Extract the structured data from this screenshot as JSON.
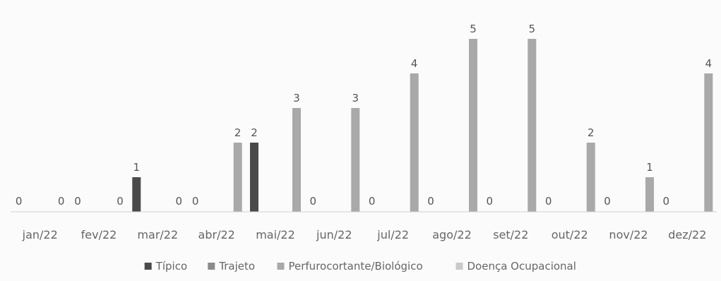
{
  "chart_data": {
    "type": "bar",
    "categories": [
      "jan/22",
      "fev/22",
      "mar/22",
      "abr/22",
      "mai/22",
      "jun/22",
      "jul/22",
      "ago/22",
      "set/22",
      "out/22",
      "nov/22",
      "dez/22"
    ],
    "series": [
      {
        "name": "Típico",
        "color": "#4a4a4a",
        "values": [
          0,
          0,
          1,
          0,
          2,
          0,
          0,
          0,
          0,
          0,
          0,
          0
        ]
      },
      {
        "name": "Perfurocortante/Biológico",
        "color": "#a9a9a9",
        "values": [
          0,
          0,
          0,
          2,
          3,
          3,
          4,
          5,
          5,
          2,
          1,
          4
        ]
      }
    ],
    "legend": [
      {
        "name": "Típico",
        "color": "#4a4a4a"
      },
      {
        "name": "Trajeto",
        "color": "#8a8a8a"
      },
      {
        "name": "Perfurocortante/Biológico",
        "color": "#a9a9a9"
      },
      {
        "name": "Doença Ocupacional",
        "color": "#c9c9c9"
      }
    ],
    "ylim": [
      0,
      5
    ],
    "legend_position": "bottom",
    "grid": false
  }
}
